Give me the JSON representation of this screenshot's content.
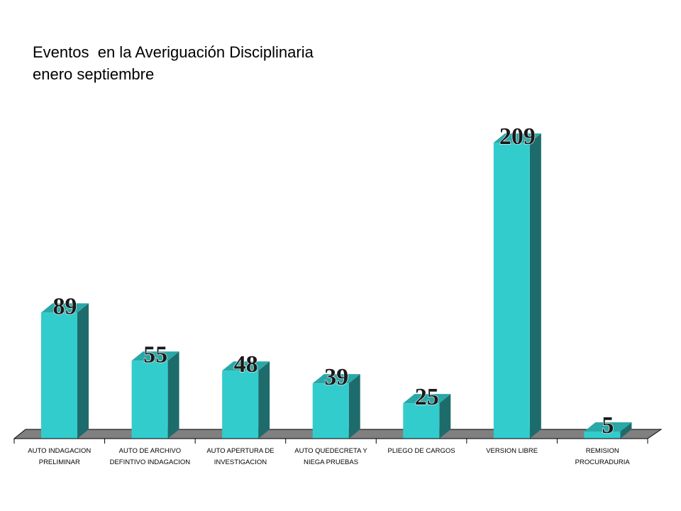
{
  "title_line1": "Eventos  en la Averiguación Disciplinaria",
  "title_line2": "enero septiembre",
  "chart_data": {
    "type": "bar",
    "title": "Eventos  en la Averiguación Disciplinaria\nenero septiembre",
    "categories": [
      [
        "AUTO INDAGACION",
        "PRELIMINAR"
      ],
      [
        "AUTO DE ARCHIVO",
        "DEFINTIVO INDAGACION"
      ],
      [
        "AUTO APERTURA DE",
        "INVESTIGACION"
      ],
      [
        "AUTO QUEDECRETA Y",
        "NIEGA PRUEBAS"
      ],
      [
        "PLIEGO DE CARGOS"
      ],
      [
        "VERSION LIBRE"
      ],
      [
        "REMISION",
        "PROCURADURIA"
      ]
    ],
    "values": [
      89,
      55,
      48,
      39,
      25,
      209,
      5
    ],
    "ylim": [
      0,
      209
    ],
    "grid": false,
    "colors": {
      "bar_front": "#33CCCC",
      "bar_side": "#1E6B6B",
      "bar_top": "#2AA8A8",
      "floor": "#808080"
    }
  }
}
